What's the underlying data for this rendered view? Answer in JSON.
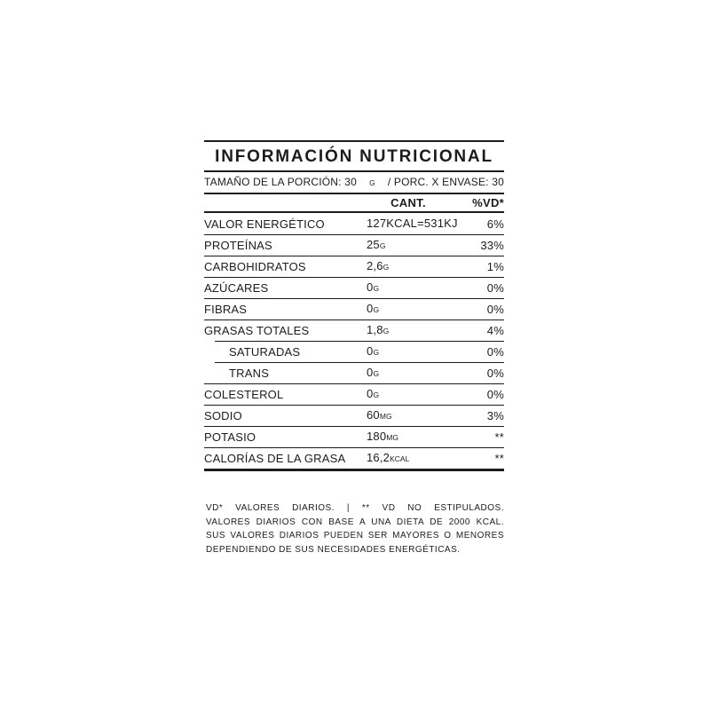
{
  "label": {
    "ink_color": "#1c1c1c",
    "title": "INFORMACIÓN NUTRICIONAL",
    "serving_line": {
      "part1": "TAMAÑO DE LA PORCIÓN: 30",
      "unit": "G",
      "part2": "/ PORC. X ENVASE: 30"
    },
    "columns": {
      "amount": "CANT.",
      "daily_value": "%VD*"
    },
    "rows": [
      {
        "label": "VALOR ENERGÉTICO",
        "value": "127KCAL=531KJ",
        "unit": "",
        "dv": "6%"
      },
      {
        "label": "PROTEÍNAS",
        "value": "25",
        "unit": "G",
        "dv": "33%"
      },
      {
        "label": "CARBOHIDRATOS",
        "value": "2,6",
        "unit": "G",
        "dv": "1%"
      },
      {
        "label": "AZÚCARES",
        "value": "0",
        "unit": "G",
        "dv": "0%"
      },
      {
        "label": "FIBRAS",
        "value": "0",
        "unit": "G",
        "dv": "0%"
      },
      {
        "label": "GRASAS TOTALES",
        "value": "1,8",
        "unit": "G",
        "dv": "4%"
      },
      {
        "label": "SATURADAS",
        "value": "0",
        "unit": "G",
        "dv": "0%"
      },
      {
        "label": "TRANS",
        "value": "0",
        "unit": "G",
        "dv": "0%"
      },
      {
        "label": "COLESTEROL",
        "value": "0",
        "unit": "G",
        "dv": "0%"
      },
      {
        "label": "SODIO",
        "value": "60",
        "unit": "MG",
        "dv": "3%"
      },
      {
        "label": "POTASIO",
        "value": "180",
        "unit": "MG",
        "dv": "**"
      },
      {
        "label": "CALORÍAS DE LA GRASA",
        "value": "16,2",
        "unit": "KCAL",
        "dv": "**"
      }
    ]
  },
  "footnote": {
    "lines": [
      "VD* VALORES DIARIOS. | ** VD NO ESTIPULADOS.",
      "VALORES DIARIOS CON BASE A UNA DIETA DE 2000 KCAL.",
      "SUS VALORES DIARIOS PUEDEN SER MAYORES O MENORES",
      "DEPENDIENDO DE SUS NECESIDADES ENERGÉTICAS."
    ]
  }
}
